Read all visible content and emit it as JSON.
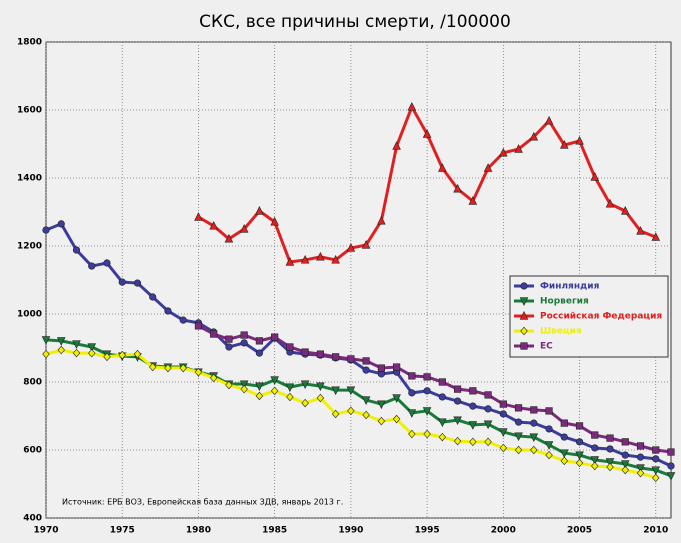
{
  "chart_data": {
    "type": "line",
    "title": "СКС, все причины смерти, /100000",
    "annotation": "Источник: ЕРБ ВОЗ, Европейская база данных ЗДВ, январь 2013 г.",
    "x": [
      1970,
      1971,
      1972,
      1973,
      1974,
      1975,
      1976,
      1977,
      1978,
      1979,
      1980,
      1981,
      1982,
      1983,
      1984,
      1985,
      1986,
      1987,
      1988,
      1989,
      1990,
      1991,
      1992,
      1993,
      1994,
      1995,
      1996,
      1997,
      1998,
      1999,
      2000,
      2001,
      2002,
      2003,
      2004,
      2005,
      2006,
      2007,
      2008,
      2009,
      2010,
      2011
    ],
    "xlim": [
      1970,
      2011
    ],
    "xticks": [
      1970,
      1975,
      1980,
      1985,
      1990,
      1995,
      2000,
      2005,
      2010
    ],
    "ylim": [
      400,
      1800
    ],
    "yticks": [
      400,
      600,
      800,
      1000,
      1200,
      1400,
      1600,
      1800
    ],
    "grid": true,
    "legend": "right",
    "series": [
      {
        "name": "Финляндия",
        "color": "#3c3c9c",
        "marker": "circle",
        "values": [
          1247,
          1265,
          1188,
          1141,
          1150,
          1094,
          1091,
          1050,
          1009,
          982,
          974,
          947,
          903,
          915,
          885,
          929,
          888,
          882,
          879,
          871,
          865,
          835,
          824,
          829,
          768,
          774,
          756,
          744,
          729,
          721,
          706,
          682,
          679,
          662,
          638,
          624,
          606,
          603,
          585,
          579,
          574,
          553
        ]
      },
      {
        "name": "Норвегия",
        "color": "#1a7a3a",
        "marker": "tri-down",
        "values": [
          924,
          921,
          912,
          903,
          882,
          876,
          874,
          847,
          844,
          844,
          829,
          818,
          794,
          794,
          788,
          806,
          785,
          794,
          788,
          776,
          776,
          747,
          735,
          753,
          709,
          715,
          682,
          688,
          674,
          676,
          653,
          641,
          638,
          615,
          591,
          585,
          571,
          565,
          559,
          547,
          541,
          524
        ]
      },
      {
        "name": "Российская Федерация",
        "color": "#e02020",
        "marker": "tri-up",
        "values": [
          null,
          null,
          null,
          null,
          null,
          null,
          null,
          null,
          null,
          null,
          1285,
          1259,
          1221,
          1250,
          1303,
          1271,
          1153,
          1159,
          1168,
          1159,
          1194,
          1203,
          1274,
          1494,
          1609,
          1529,
          1429,
          1368,
          1332,
          1429,
          1474,
          1485,
          1521,
          1568,
          1497,
          1509,
          1403,
          1324,
          1303,
          1244,
          1226,
          null
        ]
      },
      {
        "name": "Швеция",
        "color": "#f0f000",
        "marker": "diamond",
        "values": [
          882,
          894,
          885,
          885,
          874,
          879,
          882,
          844,
          841,
          841,
          829,
          812,
          791,
          779,
          759,
          774,
          756,
          738,
          753,
          706,
          715,
          703,
          685,
          691,
          647,
          647,
          638,
          626,
          624,
          624,
          606,
          600,
          600,
          585,
          568,
          562,
          553,
          550,
          541,
          532,
          518,
          null
        ]
      },
      {
        "name": "ЕС",
        "color": "#7a2a7a",
        "marker": "square",
        "values": [
          null,
          null,
          null,
          null,
          null,
          null,
          null,
          null,
          null,
          null,
          965,
          941,
          926,
          938,
          921,
          932,
          903,
          888,
          882,
          874,
          868,
          862,
          841,
          844,
          818,
          815,
          800,
          779,
          774,
          762,
          735,
          724,
          718,
          715,
          679,
          671,
          644,
          635,
          624,
          612,
          600,
          594
        ]
      }
    ]
  }
}
